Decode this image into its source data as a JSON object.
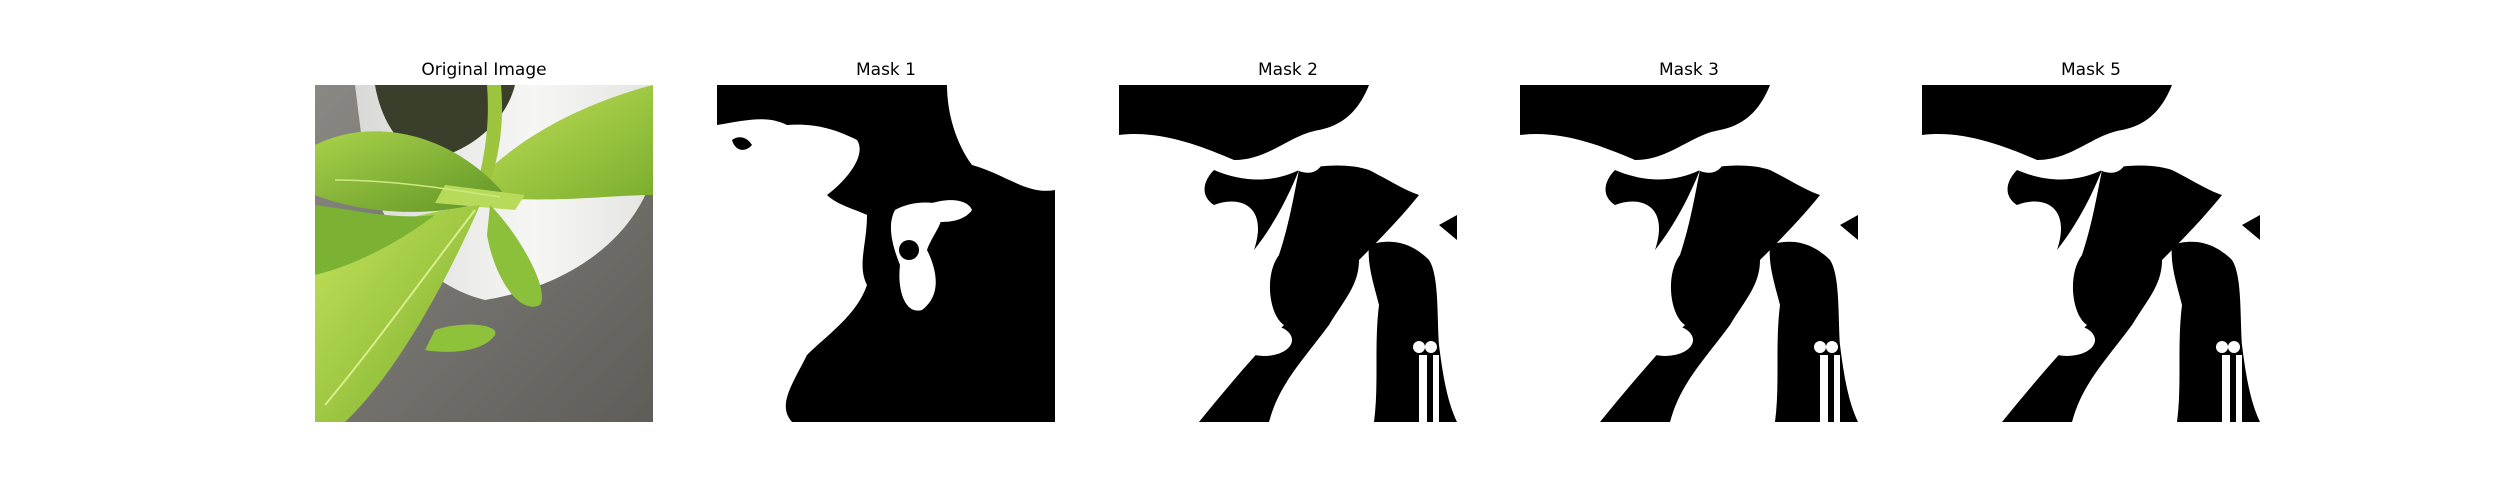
{
  "panels": [
    {
      "title": "Original Image"
    },
    {
      "title": "Mask 1"
    },
    {
      "title": "Mask 2"
    },
    {
      "title": "Mask 3"
    },
    {
      "title": "Mask 5"
    }
  ],
  "colors": {
    "mask_foreground": "#ffffff",
    "mask_background": "#000000",
    "leaf_light": "#b5d84a",
    "leaf_mid": "#8cbf2e",
    "leaf_dark": "#4f7f1c",
    "pot_white": "#f2f2f0",
    "floor_gray": "#6f6d68"
  }
}
